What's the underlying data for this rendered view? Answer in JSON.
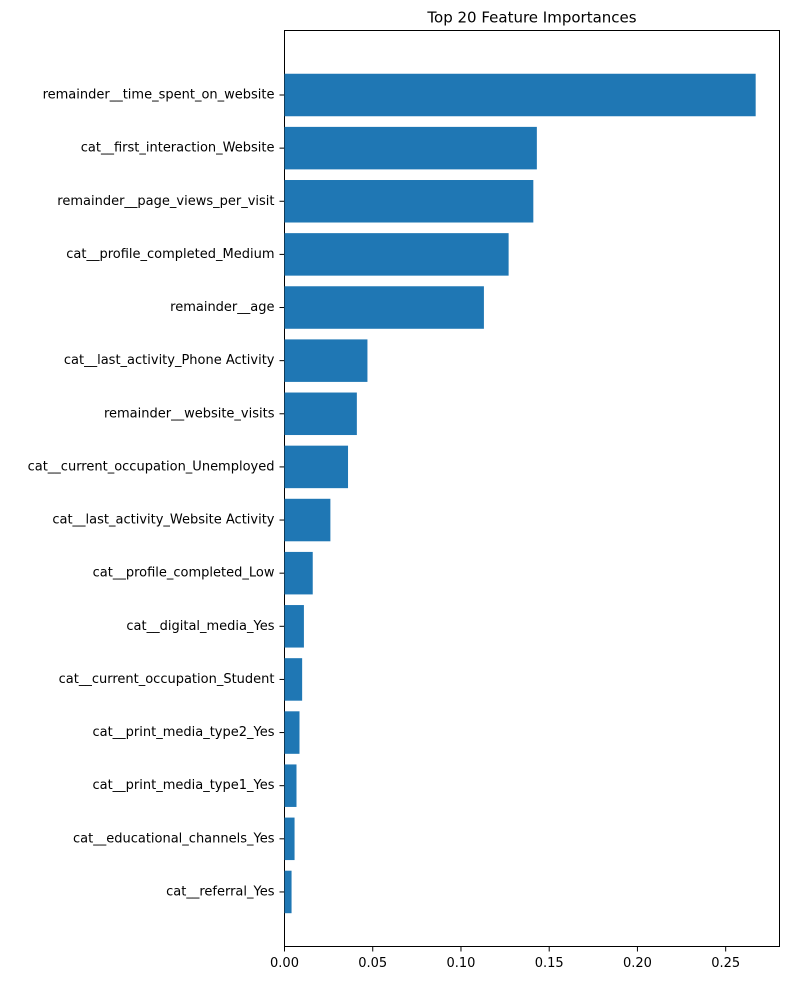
{
  "chart_data": {
    "type": "barh",
    "title": "Top 20 Feature Importances",
    "categories": [
      "remainder__time_spent_on_website",
      "cat__first_interaction_Website",
      "remainder__page_views_per_visit",
      "cat__profile_completed_Medium",
      "remainder__age",
      "cat__last_activity_Phone Activity",
      "remainder__website_visits",
      "cat__current_occupation_Unemployed",
      "cat__last_activity_Website Activity",
      "cat__profile_completed_Low",
      "cat__digital_media_Yes",
      "cat__current_occupation_Student",
      "cat__print_media_type2_Yes",
      "cat__print_media_type1_Yes",
      "cat__educational_channels_Yes",
      "cat__referral_Yes"
    ],
    "values": [
      0.267,
      0.143,
      0.141,
      0.127,
      0.113,
      0.047,
      0.041,
      0.036,
      0.026,
      0.016,
      0.011,
      0.01,
      0.0085,
      0.0068,
      0.0057,
      0.004
    ],
    "color": "#1f77b4",
    "xlim": [
      0,
      0.2805
    ],
    "xticks": [
      {
        "value": 0,
        "label": "0.00"
      },
      0.05,
      {
        "value": 0.1,
        "label": "0.10"
      },
      0.15,
      {
        "value": 0.2,
        "label": "0.20"
      },
      0.25
    ]
  }
}
